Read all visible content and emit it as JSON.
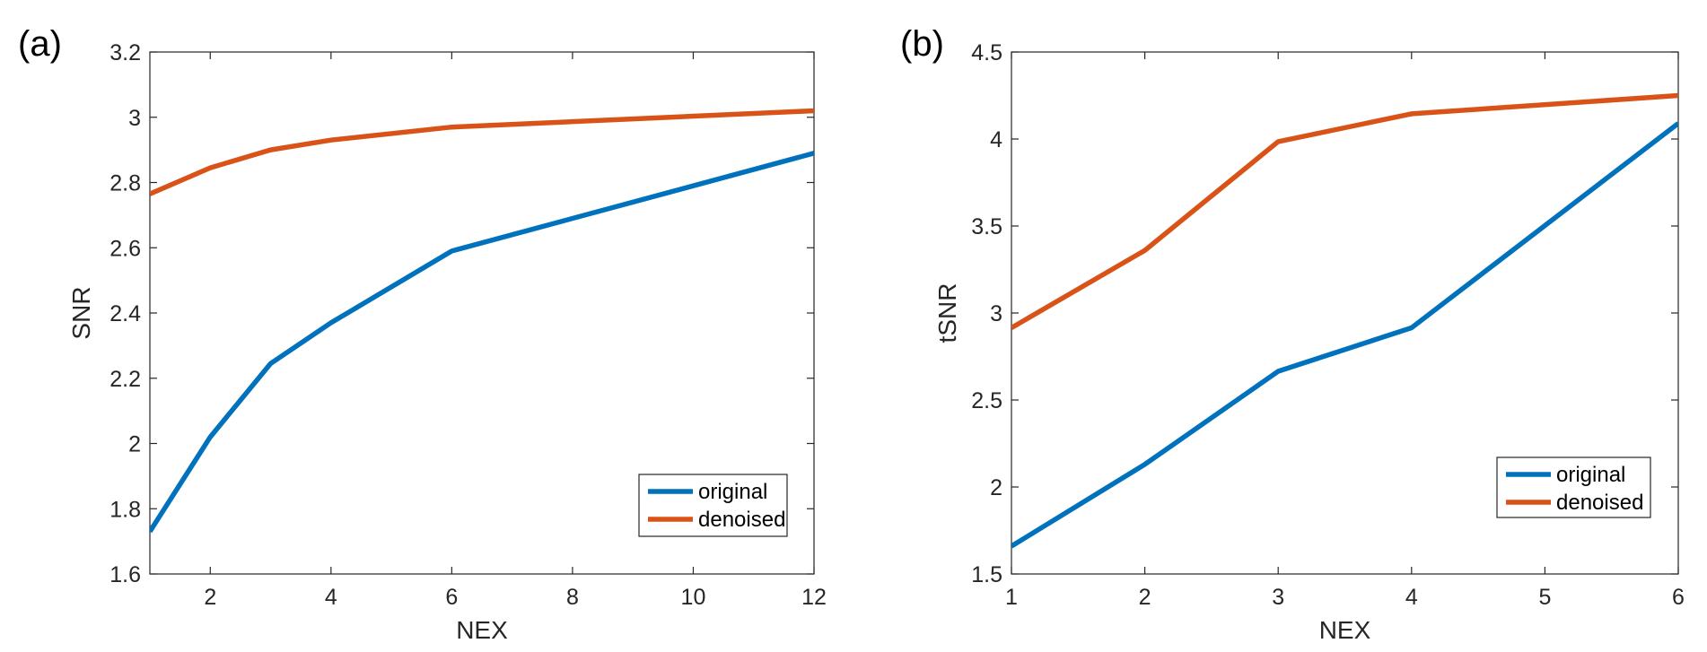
{
  "chart_data": [
    {
      "type": "line",
      "panel_label": "(a)",
      "title": "",
      "xlabel": "NEX",
      "ylabel": "SNR",
      "xlim": [
        1,
        12
      ],
      "ylim": [
        1.6,
        3.2
      ],
      "xticks": [
        2,
        4,
        6,
        8,
        10,
        12
      ],
      "yticks": [
        1.6,
        1.8,
        2,
        2.2,
        2.4,
        2.6,
        2.8,
        3,
        3.2
      ],
      "xtick_labels": [
        "2",
        "4",
        "6",
        "8",
        "10",
        "12"
      ],
      "ytick_labels": [
        "1.6",
        "1.8",
        "2",
        "2.2",
        "2.4",
        "2.6",
        "2.8",
        "3",
        "3.2"
      ],
      "grid": false,
      "legend_position": "bottom-right",
      "x": [
        1,
        2,
        3,
        4,
        6,
        12
      ],
      "series": [
        {
          "name": "original",
          "color": "#0072BD",
          "values": [
            1.73,
            2.02,
            2.245,
            2.37,
            2.59,
            2.89
          ]
        },
        {
          "name": "denoised",
          "color": "#D95319",
          "values": [
            2.765,
            2.845,
            2.9,
            2.93,
            2.97,
            3.02
          ]
        }
      ]
    },
    {
      "type": "line",
      "panel_label": "(b)",
      "title": "",
      "xlabel": "NEX",
      "ylabel": "tSNR",
      "xlim": [
        1,
        6
      ],
      "ylim": [
        1.5,
        4.5
      ],
      "xticks": [
        1,
        2,
        3,
        4,
        5,
        6
      ],
      "yticks": [
        1.5,
        2,
        2.5,
        3,
        3.5,
        4,
        4.5
      ],
      "xtick_labels": [
        "1",
        "2",
        "3",
        "4",
        "5",
        "6"
      ],
      "ytick_labels": [
        "1.5",
        "2",
        "2.5",
        "3",
        "3.5",
        "4",
        "4.5"
      ],
      "grid": false,
      "legend_position": "bottom-right",
      "x": [
        1,
        2,
        3,
        4,
        6
      ],
      "series": [
        {
          "name": "original",
          "color": "#0072BD",
          "values": [
            1.66,
            2.13,
            2.665,
            2.915,
            4.09
          ]
        },
        {
          "name": "denoised",
          "color": "#D95319",
          "values": [
            2.915,
            3.36,
            3.985,
            4.145,
            4.25
          ]
        }
      ]
    }
  ]
}
